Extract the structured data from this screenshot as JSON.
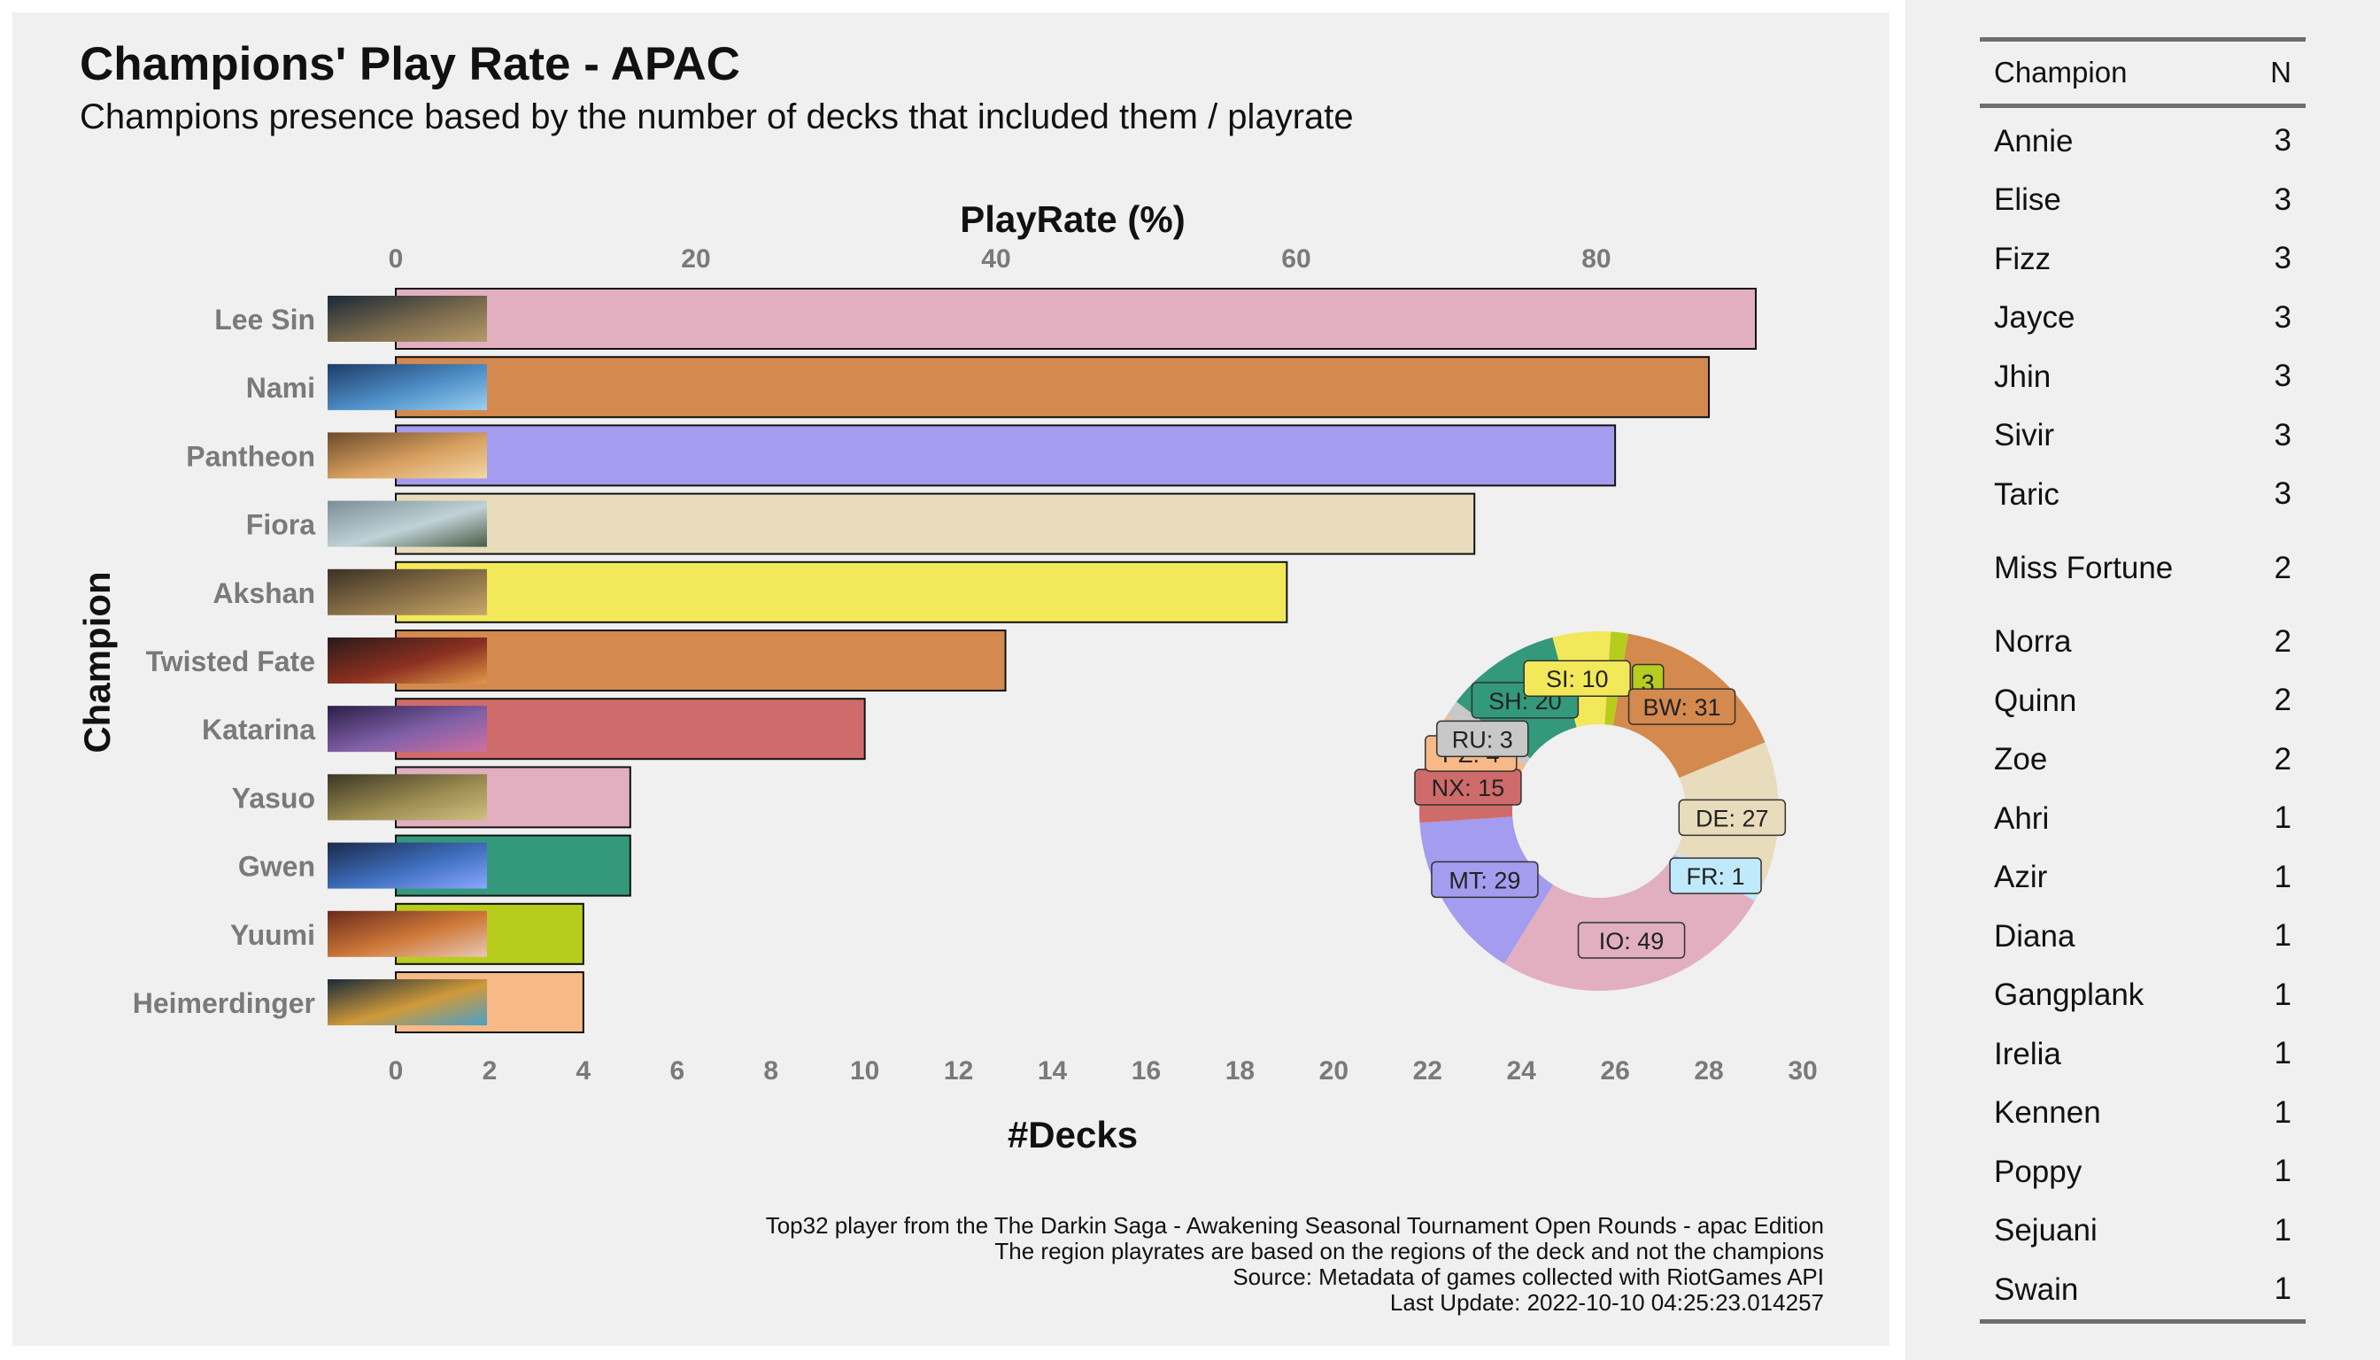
{
  "title": "Champions' Play Rate - APAC",
  "subtitle": "Champions presence based by the number of decks that included them / playrate",
  "caption": [
    "Top32 player from the The Darkin Saga - Awakening Seasonal Tournament Open Rounds - apac Edition",
    "The region playrates are based on the regions of the deck and not the champions",
    "Source: Metadata of games collected with RiotGames API",
    "Last Update: 2022-10-10 04:25:23.014257"
  ],
  "chart_data": [
    {
      "type": "bar",
      "orientation": "horizontal",
      "categories": [
        "Lee Sin",
        "Nami",
        "Pantheon",
        "Fiora",
        "Akshan",
        "Twisted Fate",
        "Katarina",
        "Yasuo",
        "Gwen",
        "Yuumi",
        "Heimerdinger"
      ],
      "values": [
        29,
        28,
        26,
        23,
        19,
        13,
        10,
        5,
        5,
        4,
        4
      ],
      "bar_colors": [
        "#e1afc0",
        "#d4894e",
        "#a49cee",
        "#e8dcbc",
        "#f2e85a",
        "#d4894e",
        "#cf6b6a",
        "#e1afc0",
        "#33997a",
        "#b8cc1e",
        "#f6b987"
      ],
      "xlabel": "#Decks",
      "ylabel": "Champion",
      "xlim": [
        0,
        30
      ],
      "x_ticks": [
        0,
        2,
        4,
        6,
        8,
        10,
        12,
        14,
        16,
        18,
        20,
        22,
        24,
        26,
        28,
        30
      ],
      "secondary_axis": {
        "label": "PlayRate (%)",
        "ticks": [
          0,
          20,
          40,
          60,
          80
        ]
      }
    },
    {
      "type": "pie",
      "style": "donut",
      "slices": [
        {
          "label": "IO: 49",
          "value": 49,
          "color": "#e1afc0"
        },
        {
          "label": "MT: 29",
          "value": 29,
          "color": "#a49cee"
        },
        {
          "label": "NX: 15",
          "value": 15,
          "color": "#cf6b6a"
        },
        {
          "label": "PZ: 4",
          "value": 4,
          "color": "#f6b987"
        },
        {
          "label": "RU: 3",
          "value": 3,
          "color": "#c8c8c8"
        },
        {
          "label": "SH: 20",
          "value": 20,
          "color": "#33997a"
        },
        {
          "label": "SI: 10",
          "value": 10,
          "color": "#f2e85a"
        },
        {
          "label": "3",
          "value": 3,
          "color": "#b8cc1e"
        },
        {
          "label": "BW: 31",
          "value": 31,
          "color": "#d4894e"
        },
        {
          "label": "DE: 27",
          "value": 27,
          "color": "#e8dcbc"
        },
        {
          "label": "FR: 1",
          "value": 1,
          "color": "#bfeafb"
        }
      ]
    }
  ],
  "table": {
    "headers": {
      "champion": "Champion",
      "n": "N"
    },
    "rows": [
      {
        "champion": "Annie",
        "n": "3"
      },
      {
        "champion": "Elise",
        "n": "3"
      },
      {
        "champion": "Fizz",
        "n": "3"
      },
      {
        "champion": "Jayce",
        "n": "3"
      },
      {
        "champion": "Jhin",
        "n": "3"
      },
      {
        "champion": "Sivir",
        "n": "3"
      },
      {
        "champion": "Taric",
        "n": "3"
      },
      {
        "champion": "Miss Fortune",
        "n": "2"
      },
      {
        "champion": "Norra",
        "n": "2"
      },
      {
        "champion": "Quinn",
        "n": "2"
      },
      {
        "champion": "Zoe",
        "n": "2"
      },
      {
        "champion": "Ahri",
        "n": "1"
      },
      {
        "champion": "Azir",
        "n": "1"
      },
      {
        "champion": "Diana",
        "n": "1"
      },
      {
        "champion": "Gangplank",
        "n": "1"
      },
      {
        "champion": "Irelia",
        "n": "1"
      },
      {
        "champion": "Kennen",
        "n": "1"
      },
      {
        "champion": "Poppy",
        "n": "1"
      },
      {
        "champion": "Sejuani",
        "n": "1"
      },
      {
        "champion": "Swain",
        "n": "1"
      }
    ]
  }
}
